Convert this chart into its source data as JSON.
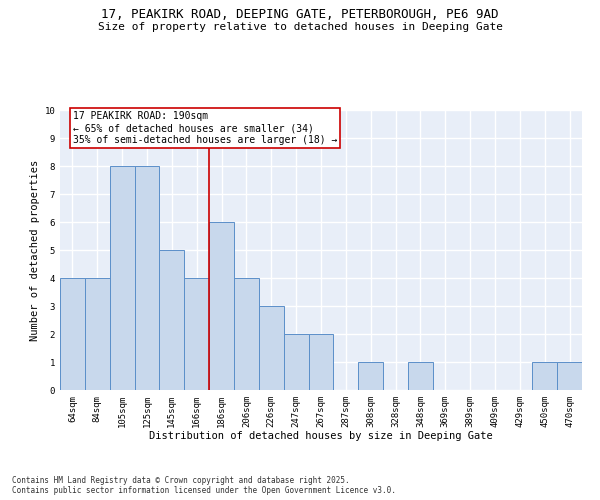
{
  "title_line1": "17, PEAKIRK ROAD, DEEPING GATE, PETERBOROUGH, PE6 9AD",
  "title_line2": "Size of property relative to detached houses in Deeping Gate",
  "xlabel": "Distribution of detached houses by size in Deeping Gate",
  "ylabel": "Number of detached properties",
  "categories": [
    "64sqm",
    "84sqm",
    "105sqm",
    "125sqm",
    "145sqm",
    "166sqm",
    "186sqm",
    "206sqm",
    "226sqm",
    "247sqm",
    "267sqm",
    "287sqm",
    "308sqm",
    "328sqm",
    "348sqm",
    "369sqm",
    "389sqm",
    "409sqm",
    "429sqm",
    "450sqm",
    "470sqm"
  ],
  "values": [
    4,
    4,
    8,
    8,
    5,
    4,
    6,
    4,
    3,
    2,
    2,
    0,
    1,
    0,
    1,
    0,
    0,
    0,
    0,
    1,
    1
  ],
  "bar_color": "#C8D8EC",
  "bar_edge_color": "#5B8FC9",
  "property_line_index": 6,
  "annotation_text_line1": "17 PEAKIRK ROAD: 190sqm",
  "annotation_text_line2": "← 65% of detached houses are smaller (34)",
  "annotation_text_line3": "35% of semi-detached houses are larger (18) →",
  "background_color": "#E8EEF8",
  "grid_color": "#FFFFFF",
  "ylim": [
    0,
    10
  ],
  "yticks": [
    0,
    1,
    2,
    3,
    4,
    5,
    6,
    7,
    8,
    9,
    10
  ],
  "footer_line1": "Contains HM Land Registry data © Crown copyright and database right 2025.",
  "footer_line2": "Contains public sector information licensed under the Open Government Licence v3.0.",
  "title_fontsize": 9,
  "subtitle_fontsize": 8,
  "axis_label_fontsize": 7.5,
  "tick_fontsize": 6.5,
  "annotation_fontsize": 7,
  "footer_fontsize": 5.5
}
